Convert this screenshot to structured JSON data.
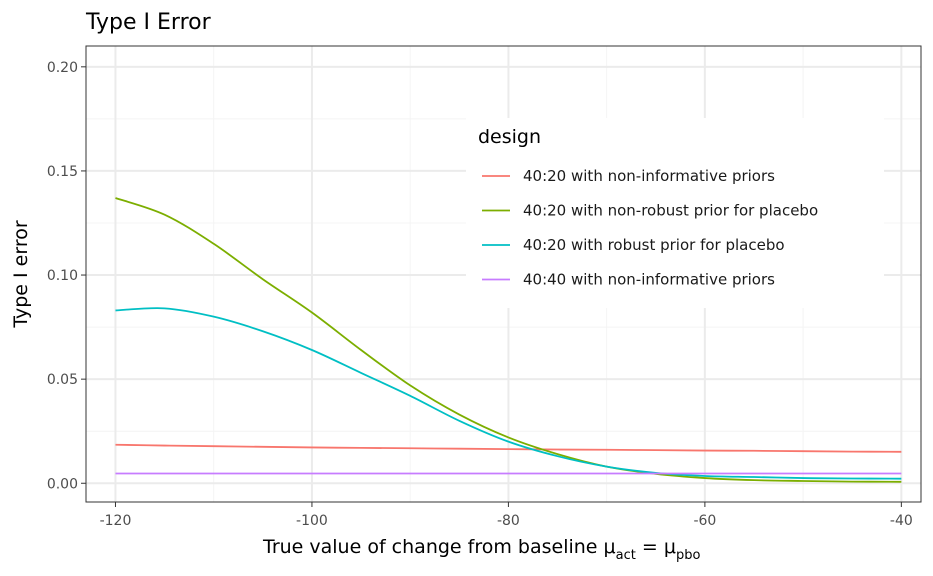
{
  "chart_data": {
    "type": "line",
    "title": "Type I Error",
    "xlabel": "True value of change from baseline",
    "xlabel_math": {
      "mu": "μ",
      "act": "act",
      "eq": "=",
      "pbo": "pbo"
    },
    "ylabel": "Type I error",
    "xlim": [
      -123,
      -38
    ],
    "ylim": [
      -0.009,
      0.21
    ],
    "x_ticks": [
      -120,
      -100,
      -80,
      -60,
      -40
    ],
    "x_tick_labels": [
      "-120",
      "-100",
      "-80",
      "-60",
      "-40"
    ],
    "y_ticks": [
      0.0,
      0.05,
      0.1,
      0.15,
      0.2
    ],
    "y_tick_labels": [
      "0.00",
      "0.05",
      "0.10",
      "0.15",
      "0.20"
    ],
    "grid": true,
    "legend_title": "design",
    "legend_position": "top-right",
    "x": [
      -120,
      -115,
      -110,
      -105,
      -100,
      -95,
      -90,
      -85,
      -80,
      -75,
      -70,
      -65,
      -60,
      -55,
      -50,
      -45,
      -40
    ],
    "series": [
      {
        "name": "40:20 with non-informative priors",
        "color": "#F8766D",
        "values": [
          0.0185,
          0.0181,
          0.0178,
          0.0175,
          0.0172,
          0.017,
          0.0168,
          0.0166,
          0.0164,
          0.0162,
          0.0161,
          0.0159,
          0.0157,
          0.0156,
          0.0154,
          0.0152,
          0.0151
        ]
      },
      {
        "name": "40:20 with non-robust prior for placebo",
        "color": "#7CAE00",
        "values": [
          0.137,
          0.129,
          0.115,
          0.098,
          0.082,
          0.064,
          0.047,
          0.033,
          0.022,
          0.014,
          0.008,
          0.0045,
          0.0025,
          0.0015,
          0.0011,
          0.0008,
          0.0007
        ]
      },
      {
        "name": "40:20 with robust prior for placebo",
        "color": "#00BFC4",
        "values": [
          0.083,
          0.084,
          0.08,
          0.073,
          0.064,
          0.053,
          0.042,
          0.03,
          0.02,
          0.013,
          0.008,
          0.005,
          0.0035,
          0.003,
          0.0025,
          0.0023,
          0.0022
        ]
      },
      {
        "name": "40:40 with non-informative priors",
        "color": "#C77CFF",
        "values": [
          0.0047,
          0.0047,
          0.0047,
          0.0047,
          0.0047,
          0.0047,
          0.0047,
          0.0047,
          0.0047,
          0.0047,
          0.0047,
          0.0047,
          0.0047,
          0.0047,
          0.0047,
          0.0047,
          0.0047
        ]
      }
    ]
  },
  "colors": {
    "panel_border": "#333333",
    "grid_major": "#ebebeb",
    "grid_minor": "#f4f4f4",
    "tick": "#333333"
  }
}
